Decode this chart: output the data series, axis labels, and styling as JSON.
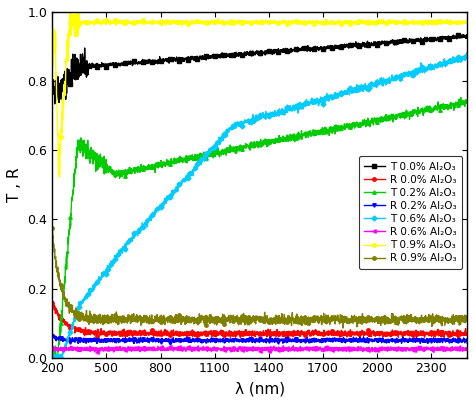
{
  "title": "",
  "xlabel": "λ (nm)",
  "ylabel": "T , R",
  "xlim": [
    200,
    2500
  ],
  "ylim": [
    0.0,
    1.0
  ],
  "xticks": [
    200,
    500,
    800,
    1100,
    1400,
    1700,
    2000,
    2300
  ],
  "yticks": [
    0.0,
    0.2,
    0.4,
    0.6,
    0.8,
    1.0
  ],
  "background_color": "#ffffff",
  "series": [
    {
      "label": "T 0.0% Al₂O₃",
      "color": "#000000",
      "marker": "s",
      "markersize": 2.5,
      "linewidth": 1.0
    },
    {
      "label": "R 0.0% Al₂O₃",
      "color": "#ff0000",
      "marker": "o",
      "markersize": 2.5,
      "linewidth": 1.0
    },
    {
      "label": "T 0.2% Al₂O₃",
      "color": "#00cc00",
      "marker": "^",
      "markersize": 2.5,
      "linewidth": 1.0
    },
    {
      "label": "R 0.2% Al₂O₃",
      "color": "#0000ff",
      "marker": "v",
      "markersize": 2.5,
      "linewidth": 1.0
    },
    {
      "label": "T 0.6% Al₂O₃",
      "color": "#00ccff",
      "marker": "D",
      "markersize": 2.5,
      "linewidth": 1.0
    },
    {
      "label": "R 0.6% Al₂O₃",
      "color": "#ff00ff",
      "marker": "<",
      "markersize": 2.5,
      "linewidth": 1.0
    },
    {
      "label": "T 0.9% Al₂O₃",
      "color": "#ffff00",
      "marker": "o",
      "markersize": 2.5,
      "linewidth": 1.0
    },
    {
      "label": "R 0.9% Al₂O₃",
      "color": "#808000",
      "marker": "o",
      "markersize": 2.5,
      "linewidth": 1.0
    }
  ]
}
